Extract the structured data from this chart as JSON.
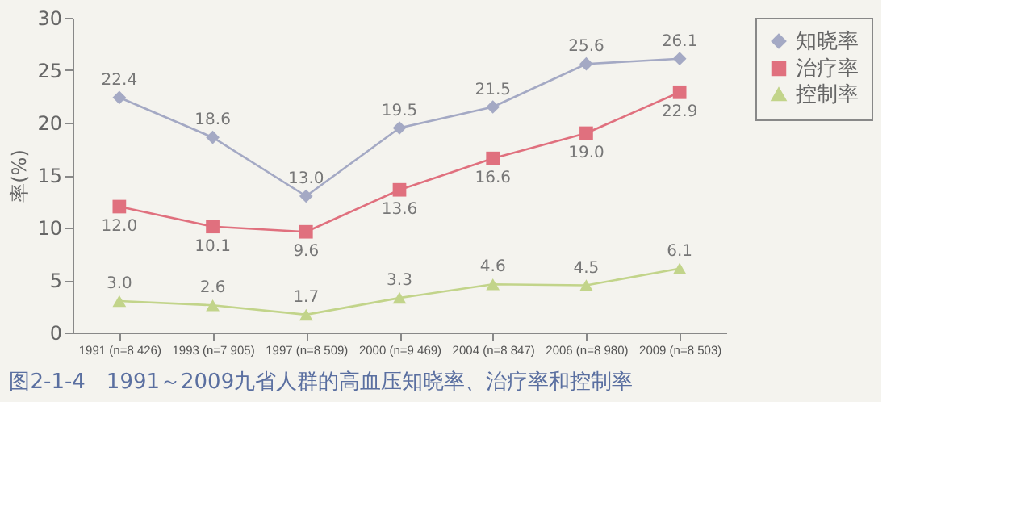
{
  "chart_data": {
    "type": "line",
    "ylabel": "率(%)",
    "annotations": [
      "图2-1-4　1991～2009九省人群的高血压知晓率、治疗率和控制率"
    ],
    "categories": [
      "1991 (n=8 426)",
      "1993 (n=7 905)",
      "1997 (n=8 509)",
      "2000 (n=9 469)",
      "2004 (n=8 847)",
      "2006 (n=8 980)",
      "2009 (n=8 503)"
    ],
    "series": [
      {
        "name": "知晓率",
        "color": "#a4a9c4",
        "marker": "diamond",
        "values": [
          22.4,
          18.6,
          13.0,
          19.5,
          21.5,
          25.6,
          26.1
        ],
        "value_labels": [
          "22.4",
          "18.6",
          "13.0",
          "19.5",
          "21.5",
          "25.6",
          "26.1"
        ]
      },
      {
        "name": "治疗率",
        "color": "#e0707e",
        "marker": "square",
        "values": [
          12.0,
          10.1,
          9.6,
          13.6,
          16.6,
          19.0,
          22.9
        ],
        "value_labels": [
          "12.0",
          "10.1",
          "9.6",
          "13.6",
          "16.6",
          "19.0",
          "22.9"
        ]
      },
      {
        "name": "控制率",
        "color": "#c2d48a",
        "marker": "triangle",
        "values": [
          3.0,
          2.6,
          1.7,
          3.3,
          4.6,
          4.5,
          6.1
        ],
        "value_labels": [
          "3.0",
          "2.6",
          "1.7",
          "3.3",
          "4.6",
          "4.5",
          "6.1"
        ]
      }
    ],
    "ylim": [
      0,
      30
    ],
    "yticks": [
      0,
      5,
      10,
      15,
      20,
      25,
      30
    ],
    "grid": false,
    "legend": "right",
    "line_style": "solid"
  }
}
